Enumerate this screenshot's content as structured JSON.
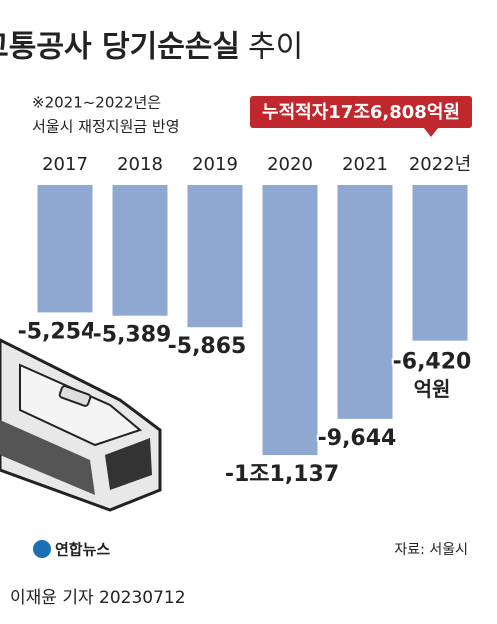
{
  "chart_data": {
    "type": "bar",
    "title": "서울교통공사 당기순손실",
    "title_light": "추이",
    "note": [
      "※2021~2022년은",
      "서울시 재정지원금 반영"
    ],
    "callout": "누적적자17조6,808억원",
    "categories": [
      "2017",
      "2018",
      "2019",
      "2020",
      "2021",
      "2022년"
    ],
    "values": [
      -5254,
      -5389,
      -5865,
      -11137,
      -9644,
      -6420
    ],
    "value_labels": [
      "-5,254",
      "-5,389",
      "-5,865",
      "-1조1,137",
      "-9,644",
      "-6,420"
    ],
    "unit": "억원",
    "color": "#8fa8d2",
    "ylim": [
      -12000,
      0
    ],
    "logo": "연합뉴스",
    "source": "자료: 서울시",
    "byline": "이재윤 기자  20230712"
  }
}
